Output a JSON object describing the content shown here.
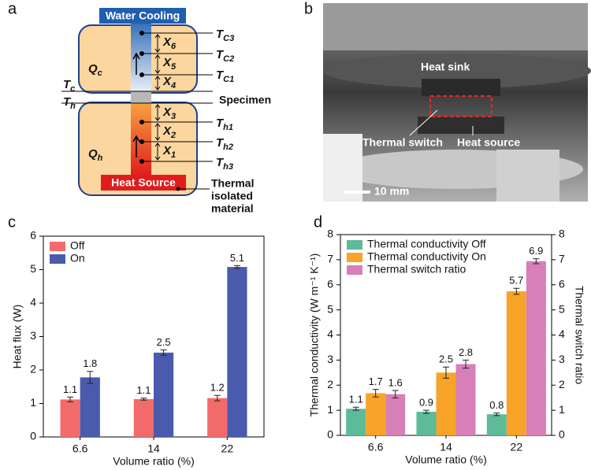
{
  "diagram": {
    "panel_label": "a",
    "top_label": "Water Cooling",
    "bottom_label": "Heat Source",
    "specimen": "Specimen",
    "material": [
      "Thermal",
      "isolated",
      "material"
    ],
    "labels": [
      {
        "main": "T",
        "sub": "C3"
      },
      {
        "main": "T",
        "sub": "C2"
      },
      {
        "main": "T",
        "sub": "C1"
      },
      {
        "main": "T",
        "sub": "c"
      },
      {
        "main": "T",
        "sub": "h"
      },
      {
        "main": "T",
        "sub": "h1"
      },
      {
        "main": "T",
        "sub": "h2"
      },
      {
        "main": "T",
        "sub": "h3"
      },
      {
        "main": "X",
        "sub": "6"
      },
      {
        "main": "X",
        "sub": "5"
      },
      {
        "main": "X",
        "sub": "4"
      },
      {
        "main": "X",
        "sub": "3"
      },
      {
        "main": "X",
        "sub": "2"
      },
      {
        "main": "X",
        "sub": "1"
      },
      {
        "main": "Q",
        "sub": "c"
      },
      {
        "main": "Q",
        "sub": "h"
      }
    ]
  },
  "photo": {
    "panel_label": "b",
    "heat_sink": "Heat sink",
    "thermal_switch": "Thermal switch",
    "heat_source": "Heat source",
    "scale": "10 mm"
  },
  "chart_data": [
    {
      "type": "bar",
      "panel_label": "c",
      "categories": [
        "6.6",
        "14",
        "22"
      ],
      "xlabel": "Volume ratio (%)",
      "ylabel": "Heat flux (W)",
      "legend": "upper left",
      "ylim": [
        0,
        6
      ],
      "yticks": [
        0,
        1,
        2,
        3,
        4,
        5,
        6
      ],
      "series": [
        {
          "name": "Off",
          "color": "#f26b6b",
          "values": [
            1.12,
            1.13,
            1.16
          ],
          "errors": [
            0.07,
            0.03,
            0.08
          ],
          "value_labels": [
            "1.1",
            "1.1",
            "1.2"
          ]
        },
        {
          "name": "On",
          "color": "#4a5bad",
          "values": [
            1.78,
            2.52,
            5.08
          ],
          "errors": [
            0.18,
            0.08,
            0.04
          ],
          "value_labels": [
            "1.8",
            "2.5",
            "5.1"
          ]
        }
      ]
    },
    {
      "type": "bar",
      "panel_label": "d",
      "categories": [
        "6.6",
        "14",
        "22"
      ],
      "xlabel": "Volume ratio (%)",
      "ylabel": "Thermal conductivity (W m⁻¹ K⁻¹)",
      "y2label": "Thermal switch ratio",
      "legend": "upper left",
      "ylim": [
        0,
        8
      ],
      "yticks": [
        0,
        1,
        2,
        3,
        4,
        5,
        6,
        7,
        8
      ],
      "y2lim": [
        0,
        8
      ],
      "y2ticks": [
        0,
        1,
        2,
        3,
        4,
        5,
        6,
        7,
        8
      ],
      "series": [
        {
          "name": "Thermal conductivity Off",
          "color": "#5dbb99",
          "values": [
            1.06,
            0.94,
            0.84
          ],
          "errors": [
            0.06,
            0.06,
            0.05
          ],
          "value_labels": [
            "1.1",
            "0.9",
            "0.8"
          ]
        },
        {
          "name": "Thermal conductivity On",
          "color": "#f7a428",
          "values": [
            1.68,
            2.5,
            5.74
          ],
          "errors": [
            0.15,
            0.22,
            0.12
          ],
          "value_labels": [
            "1.7",
            "2.5",
            "5.7"
          ]
        },
        {
          "name": "Thermal switch ratio",
          "color": "#d77fb8",
          "axis": "y2",
          "values": [
            1.64,
            2.84,
            6.94
          ],
          "errors": [
            0.15,
            0.16,
            0.1
          ],
          "value_labels": [
            "1.6",
            "2.8",
            "6.9"
          ]
        }
      ]
    }
  ]
}
